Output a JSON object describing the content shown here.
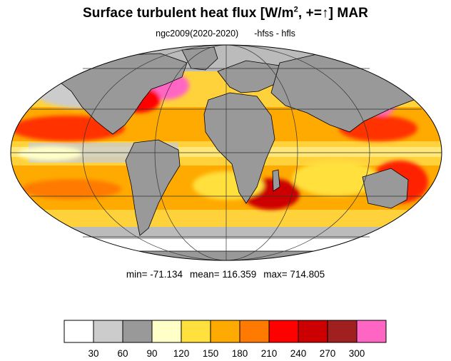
{
  "title": {
    "main": "Surface turbulent heat flux [W/m",
    "sup": "2",
    "tail": ", +=↑]  MAR"
  },
  "subtitle": {
    "run": "ngc2009(2020-2020)",
    "expr": "-hfss - hfls"
  },
  "stats": {
    "min": "min= -71.134",
    "mean": "mean= 116.359",
    "max": "max= 714.805"
  },
  "colorbar": {
    "colors": [
      "#ffffff",
      "#cccccc",
      "#999999",
      "#ffffc8",
      "#ffe03c",
      "#ffaa00",
      "#ff7a00",
      "#ff0000",
      "#cc0000",
      "#a02020",
      "#ff66c4"
    ],
    "labels": [
      "30",
      "60",
      "90",
      "120",
      "150",
      "180",
      "210",
      "240",
      "270",
      "300"
    ]
  },
  "map": {
    "projection": "mollweide",
    "ocean_base_color": "#ffd23c",
    "land_color": "#999999",
    "coastline_color": "#000000"
  }
}
